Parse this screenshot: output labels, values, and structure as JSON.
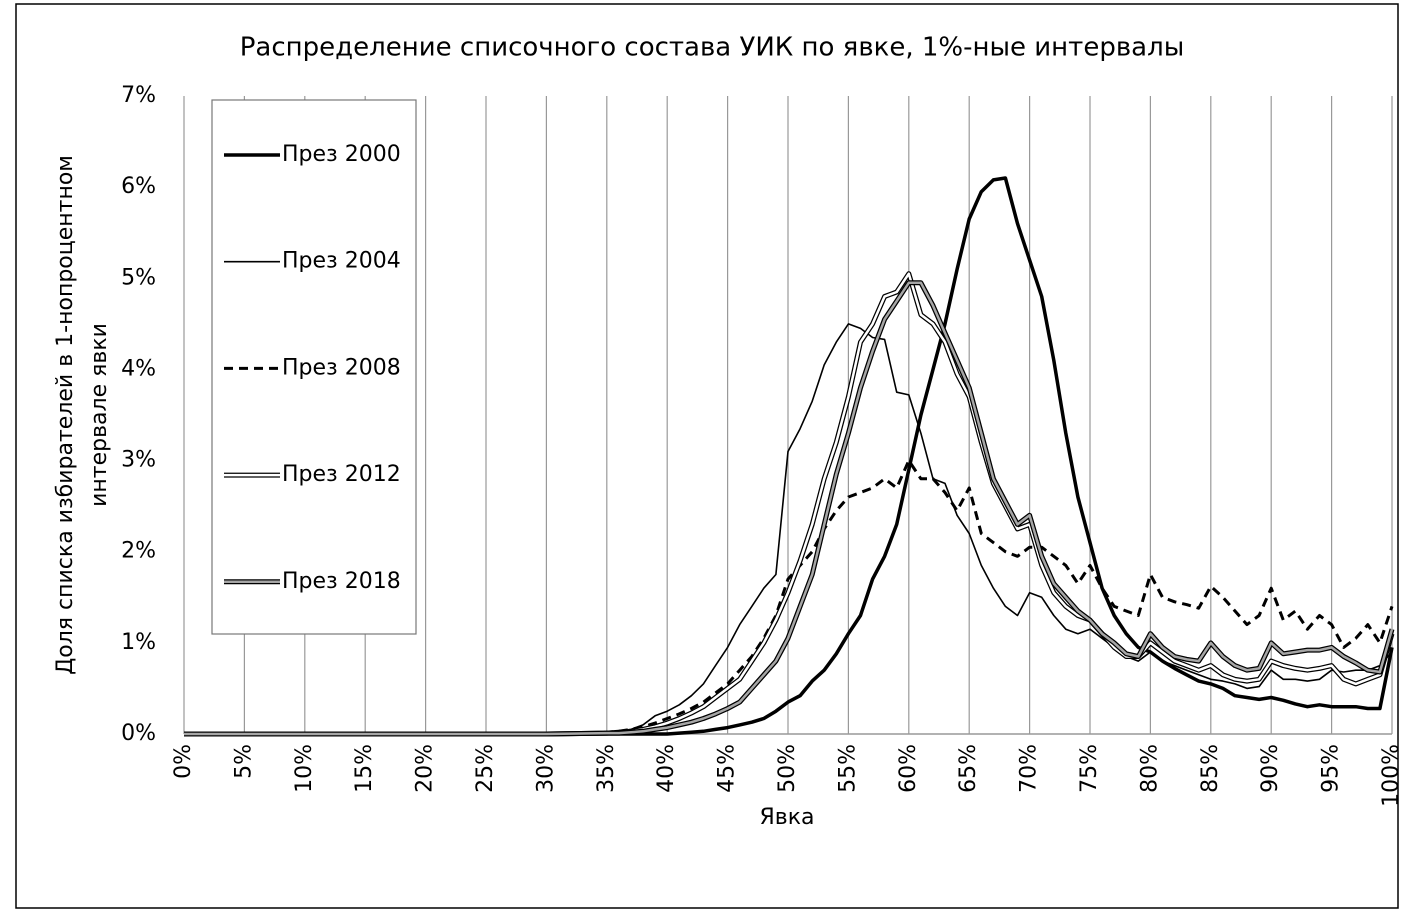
{
  "chart_data": {
    "type": "line",
    "title": "Распределение списочного состава УИК по явке, 1%-ные интервалы",
    "xlabel": "Явка",
    "ylabel": [
      "Доля списка избирателей в 1-нопроцентном",
      "интервале явки"
    ],
    "legend": "upper left",
    "grid": true,
    "x": [
      0,
      30,
      35,
      36,
      37,
      38,
      39,
      40,
      41,
      42,
      43,
      44,
      45,
      46,
      47,
      48,
      49,
      50,
      51,
      52,
      53,
      54,
      55,
      56,
      57,
      58,
      59,
      60,
      61,
      62,
      63,
      64,
      65,
      66,
      67,
      68,
      69,
      70,
      71,
      72,
      73,
      74,
      75,
      76,
      77,
      78,
      79,
      80,
      81,
      82,
      83,
      84,
      85,
      86,
      87,
      88,
      89,
      90,
      91,
      92,
      93,
      94,
      95,
      96,
      97,
      98,
      99,
      100
    ],
    "xlim": [
      0,
      100
    ],
    "xticks": [
      {
        "value": 0,
        "label": "0%"
      },
      {
        "value": 5,
        "label": "5%"
      },
      {
        "value": 10,
        "label": "10%"
      },
      {
        "value": 15,
        "label": "15%"
      },
      {
        "value": 20,
        "label": "20%"
      },
      {
        "value": 25,
        "label": "25%"
      },
      {
        "value": 30,
        "label": "30%"
      },
      {
        "value": 35,
        "label": "35%"
      },
      {
        "value": 40,
        "label": "40%"
      },
      {
        "value": 45,
        "label": "45%"
      },
      {
        "value": 50,
        "label": "50%"
      },
      {
        "value": 55,
        "label": "55%"
      },
      {
        "value": 60,
        "label": "60%"
      },
      {
        "value": 65,
        "label": "65%"
      },
      {
        "value": 70,
        "label": "70%"
      },
      {
        "value": 75,
        "label": "75%"
      },
      {
        "value": 80,
        "label": "80%"
      },
      {
        "value": 85,
        "label": "85%"
      },
      {
        "value": 90,
        "label": "90%"
      },
      {
        "value": 95,
        "label": "95%"
      },
      {
        "value": 100,
        "label": "100%"
      }
    ],
    "ylim": [
      0,
      7
    ],
    "yticks": [
      {
        "value": 0,
        "label": "0%"
      },
      {
        "value": 1,
        "label": "1%"
      },
      {
        "value": 2,
        "label": "2%"
      },
      {
        "value": 3,
        "label": "3%"
      },
      {
        "value": 4,
        "label": "4%"
      },
      {
        "value": 5,
        "label": "5%"
      },
      {
        "value": 6,
        "label": "6%"
      },
      {
        "value": 7,
        "label": "7%"
      }
    ],
    "series": [
      {
        "name": "През 2000",
        "color": "#000000",
        "style": "thick",
        "values": [
          0,
          0,
          0,
          0,
          0,
          0,
          0,
          0,
          0.01,
          0.02,
          0.03,
          0.05,
          0.07,
          0.1,
          0.13,
          0.17,
          0.25,
          0.35,
          0.42,
          0.58,
          0.7,
          0.88,
          1.1,
          1.3,
          1.7,
          1.95,
          2.3,
          2.9,
          3.5,
          4.0,
          4.5,
          5.1,
          5.65,
          5.95,
          6.08,
          6.1,
          5.6,
          5.2,
          4.8,
          4.1,
          3.3,
          2.6,
          2.1,
          1.6,
          1.3,
          1.1,
          0.95,
          0.9,
          0.8,
          0.72,
          0.65,
          0.58,
          0.55,
          0.5,
          0.42,
          0.4,
          0.38,
          0.4,
          0.37,
          0.33,
          0.3,
          0.32,
          0.3,
          0.3,
          0.3,
          0.28,
          0.28,
          0.95
        ]
      },
      {
        "name": "През 2004",
        "color": "#000000",
        "style": "thin",
        "values": [
          0,
          0,
          0.02,
          0.03,
          0.05,
          0.1,
          0.2,
          0.25,
          0.32,
          0.42,
          0.55,
          0.75,
          0.95,
          1.2,
          1.4,
          1.6,
          1.75,
          3.1,
          3.35,
          3.65,
          4.05,
          4.3,
          4.5,
          4.45,
          4.35,
          4.33,
          3.75,
          3.72,
          3.3,
          2.8,
          2.75,
          2.4,
          2.2,
          1.85,
          1.6,
          1.4,
          1.3,
          1.55,
          1.5,
          1.3,
          1.15,
          1.1,
          1.15,
          1.05,
          0.95,
          0.85,
          0.8,
          0.9,
          0.8,
          0.75,
          0.7,
          0.65,
          0.6,
          0.58,
          0.55,
          0.5,
          0.52,
          0.7,
          0.6,
          0.6,
          0.58,
          0.6,
          0.7,
          0.68,
          0.7,
          0.7,
          0.75,
          0.9
        ]
      },
      {
        "name": "През 2008",
        "color": "#000000",
        "style": "dashed",
        "values": [
          0,
          0,
          0.02,
          0.03,
          0.05,
          0.08,
          0.12,
          0.17,
          0.22,
          0.28,
          0.35,
          0.45,
          0.55,
          0.7,
          0.85,
          1.05,
          1.3,
          1.7,
          1.85,
          2.0,
          2.25,
          2.45,
          2.6,
          2.65,
          2.7,
          2.8,
          2.7,
          3.0,
          2.8,
          2.8,
          2.65,
          2.45,
          2.7,
          2.2,
          2.1,
          2.0,
          1.95,
          2.05,
          2.05,
          1.95,
          1.85,
          1.65,
          1.85,
          1.6,
          1.4,
          1.35,
          1.3,
          1.75,
          1.5,
          1.45,
          1.42,
          1.38,
          1.62,
          1.5,
          1.35,
          1.2,
          1.3,
          1.6,
          1.25,
          1.35,
          1.15,
          1.3,
          1.2,
          0.95,
          1.05,
          1.2,
          1.0,
          1.4
        ]
      },
      {
        "name": "През 2012",
        "color": "#ffffff",
        "style": "double",
        "values": [
          0,
          0,
          0.01,
          0.02,
          0.03,
          0.05,
          0.08,
          0.12,
          0.17,
          0.23,
          0.3,
          0.4,
          0.5,
          0.6,
          0.8,
          1.0,
          1.25,
          1.55,
          1.9,
          2.3,
          2.8,
          3.2,
          3.7,
          4.3,
          4.5,
          4.8,
          4.85,
          5.05,
          4.6,
          4.5,
          4.3,
          3.95,
          3.7,
          3.2,
          2.75,
          2.5,
          2.25,
          2.3,
          1.85,
          1.55,
          1.4,
          1.3,
          1.25,
          1.1,
          0.95,
          0.85,
          0.85,
          1.0,
          0.9,
          0.8,
          0.75,
          0.7,
          0.75,
          0.65,
          0.6,
          0.58,
          0.6,
          0.8,
          0.75,
          0.72,
          0.7,
          0.72,
          0.75,
          0.6,
          0.55,
          0.6,
          0.65,
          1.1
        ]
      },
      {
        "name": "През 2018",
        "color": "#a6a6a6",
        "style": "double",
        "values": [
          0,
          0,
          0.01,
          0.01,
          0.02,
          0.03,
          0.05,
          0.07,
          0.1,
          0.13,
          0.17,
          0.22,
          0.28,
          0.35,
          0.5,
          0.65,
          0.8,
          1.05,
          1.4,
          1.75,
          2.3,
          2.85,
          3.3,
          3.8,
          4.2,
          4.55,
          4.75,
          4.95,
          4.95,
          4.7,
          4.4,
          4.1,
          3.8,
          3.3,
          2.8,
          2.55,
          2.3,
          2.4,
          1.95,
          1.65,
          1.5,
          1.35,
          1.25,
          1.1,
          1.0,
          0.88,
          0.85,
          1.1,
          0.95,
          0.85,
          0.82,
          0.8,
          1.0,
          0.85,
          0.75,
          0.7,
          0.72,
          1.0,
          0.88,
          0.9,
          0.92,
          0.92,
          0.95,
          0.85,
          0.78,
          0.7,
          0.68,
          1.15
        ]
      }
    ]
  }
}
